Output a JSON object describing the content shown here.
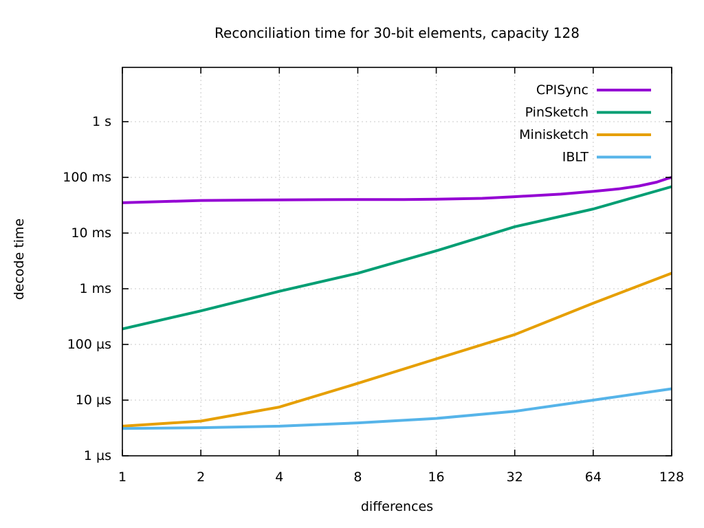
{
  "page": {
    "background": "#ffffff",
    "text_color": "#000000",
    "grid_color": "#c8c8c8",
    "axis_color": "#000000"
  },
  "chart_data": {
    "type": "line",
    "title": "Reconciliation time for 30-bit elements, capacity 128",
    "xlabel": "differences",
    "ylabel": "decode time",
    "x_scale": "log2",
    "y_scale": "log10",
    "grid": true,
    "legend_position": "top-right-inside",
    "xlim": [
      1,
      128
    ],
    "ylim_seconds": [
      1e-06,
      9.44
    ],
    "x_ticks": [
      {
        "value": 1,
        "label": "1"
      },
      {
        "value": 2,
        "label": "2"
      },
      {
        "value": 4,
        "label": "4"
      },
      {
        "value": 8,
        "label": "8"
      },
      {
        "value": 16,
        "label": "16"
      },
      {
        "value": 32,
        "label": "32"
      },
      {
        "value": 64,
        "label": "64"
      },
      {
        "value": 128,
        "label": "128"
      }
    ],
    "y_ticks": [
      {
        "value": 1e-06,
        "label": "1 µs"
      },
      {
        "value": 1e-05,
        "label": "10 µs"
      },
      {
        "value": 0.0001,
        "label": "100 µs"
      },
      {
        "value": 0.001,
        "label": "1 ms"
      },
      {
        "value": 0.01,
        "label": "10 ms"
      },
      {
        "value": 0.1,
        "label": "100 ms"
      },
      {
        "value": 1,
        "label": "1 s"
      }
    ],
    "series": [
      {
        "name": "CPISync",
        "color": "#9400d3",
        "points_x_seconds": [
          [
            1,
            0.035
          ],
          [
            2,
            0.0385
          ],
          [
            4,
            0.0395
          ],
          [
            6,
            0.0398
          ],
          [
            8,
            0.04
          ],
          [
            12,
            0.04
          ],
          [
            16,
            0.0405
          ],
          [
            24,
            0.042
          ],
          [
            32,
            0.045
          ],
          [
            48,
            0.05
          ],
          [
            64,
            0.056
          ],
          [
            80,
            0.062
          ],
          [
            96,
            0.07
          ],
          [
            112,
            0.082
          ],
          [
            124,
            0.096
          ],
          [
            128,
            0.1
          ]
        ]
      },
      {
        "name": "PinSketch",
        "color": "#009e73",
        "points_x_seconds": [
          [
            1,
            0.00019
          ],
          [
            2,
            0.0004
          ],
          [
            4,
            0.0009
          ],
          [
            8,
            0.0019
          ],
          [
            16,
            0.0048
          ],
          [
            32,
            0.013
          ],
          [
            64,
            0.027
          ],
          [
            128,
            0.068
          ]
        ]
      },
      {
        "name": "Minisketch",
        "color": "#e69f00",
        "points_x_seconds": [
          [
            1,
            3.4e-06
          ],
          [
            2,
            4.2e-06
          ],
          [
            4,
            7.5e-06
          ],
          [
            8,
            2e-05
          ],
          [
            16,
            5.5e-05
          ],
          [
            32,
            0.00015
          ],
          [
            64,
            0.00055
          ],
          [
            128,
            0.0019
          ]
        ]
      },
      {
        "name": "IBLT",
        "color": "#56b4e9",
        "points_x_seconds": [
          [
            1,
            3.1e-06
          ],
          [
            2,
            3.2e-06
          ],
          [
            4,
            3.4e-06
          ],
          [
            8,
            3.9e-06
          ],
          [
            16,
            4.7e-06
          ],
          [
            32,
            6.3e-06
          ],
          [
            64,
            1e-05
          ],
          [
            128,
            1.6e-05
          ]
        ]
      }
    ]
  }
}
